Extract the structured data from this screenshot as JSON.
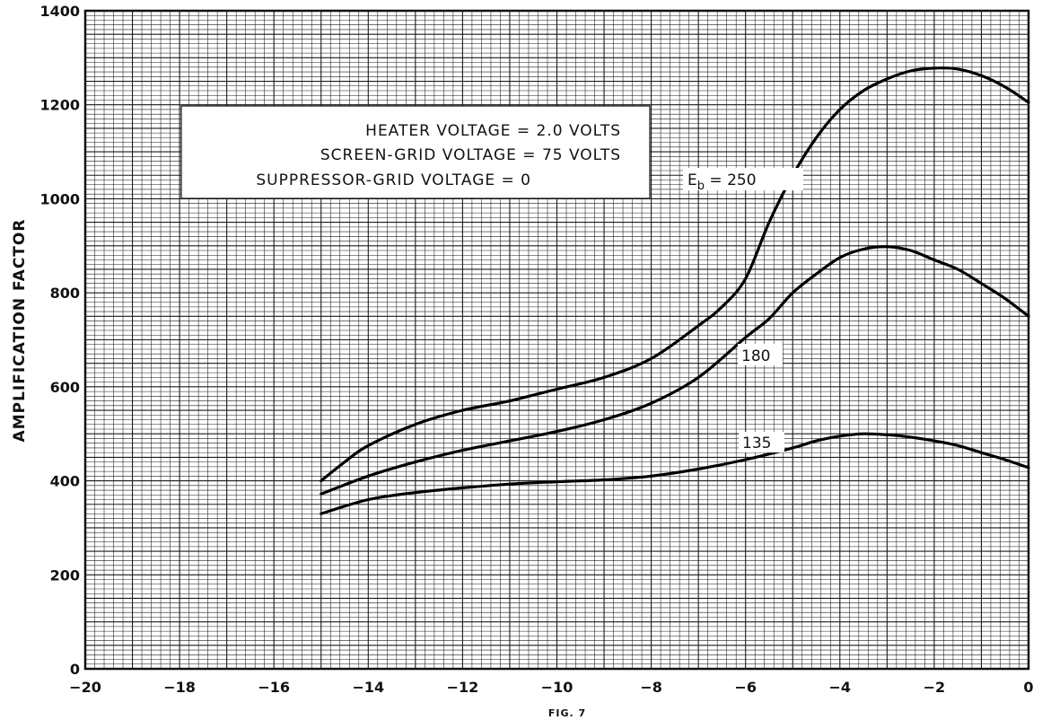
{
  "chart_data": {
    "type": "line",
    "title": "",
    "xlabel": "",
    "ylabel": "AMPLIFICATION FACTOR",
    "caption": "FIG. 7",
    "xlim": [
      -20,
      0
    ],
    "ylim": [
      0,
      1400
    ],
    "x_ticks": [
      -20,
      -18,
      -16,
      -14,
      -12,
      -10,
      -8,
      -6,
      -4,
      -2,
      0
    ],
    "y_ticks": [
      0,
      200,
      400,
      600,
      800,
      1000,
      1200,
      1400
    ],
    "grid": true,
    "conditions": [
      "HEATER VOLTAGE = 2.0 VOLTS",
      "SCREEN-GRID VOLTAGE = 75 VOLTS",
      "SUPPRESSOR-GRID VOLTAGE = 0"
    ],
    "series": [
      {
        "name": "250",
        "label_prefix": "E",
        "label_subscript": "b",
        "label_eq": " = 250",
        "x": [
          -15,
          -14.5,
          -14,
          -13,
          -12,
          -11,
          -10,
          -9,
          -8,
          -7,
          -6.5,
          -6,
          -5.5,
          -5,
          -4.5,
          -4,
          -3.5,
          -3,
          -2.5,
          -2,
          -1.5,
          -1,
          -0.5,
          0
        ],
        "values": [
          400,
          440,
          475,
          520,
          550,
          570,
          595,
          620,
          660,
          730,
          770,
          830,
          950,
          1050,
          1130,
          1190,
          1230,
          1255,
          1272,
          1278,
          1276,
          1262,
          1238,
          1205
        ]
      },
      {
        "name": "180",
        "label_eq": "180",
        "x": [
          -15,
          -14,
          -13,
          -12,
          -11,
          -10,
          -9,
          -8,
          -7,
          -6,
          -5.5,
          -5,
          -4.5,
          -4,
          -3.5,
          -3,
          -2.5,
          -2,
          -1.5,
          -1,
          -0.5,
          0
        ],
        "values": [
          372,
          410,
          440,
          465,
          485,
          505,
          530,
          565,
          620,
          705,
          745,
          800,
          840,
          875,
          893,
          898,
          890,
          870,
          850,
          820,
          788,
          750
        ]
      },
      {
        "name": "135",
        "label_eq": "135",
        "x": [
          -15,
          -14,
          -13,
          -12,
          -11,
          -10,
          -9,
          -8,
          -7,
          -6,
          -5,
          -4.5,
          -4,
          -3.5,
          -3,
          -2.5,
          -2,
          -1.5,
          -1,
          -0.5,
          0
        ],
        "values": [
          330,
          360,
          375,
          385,
          393,
          398,
          402,
          410,
          425,
          445,
          470,
          485,
          495,
          500,
          498,
          493,
          485,
          475,
          460,
          445,
          428
        ]
      }
    ]
  }
}
